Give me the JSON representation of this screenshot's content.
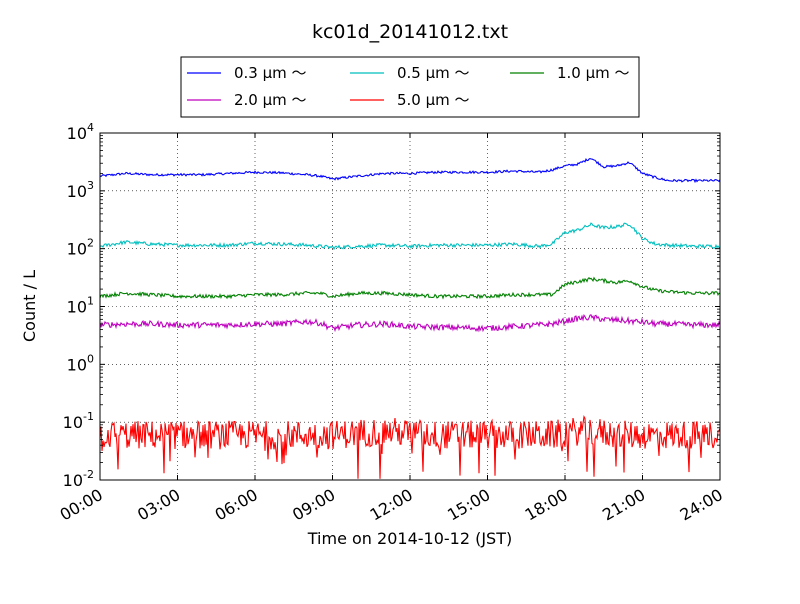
{
  "chart_data": {
    "type": "line",
    "title": "kc01d_20141012.txt",
    "xlabel": "Time on 2014-10-12 (JST)",
    "ylabel": "Count / L",
    "yscale": "log",
    "ylim": [
      0.01,
      10000
    ],
    "xlim": [
      "00:00",
      "24:00"
    ],
    "grid": true,
    "legend_position": "top-center",
    "x_ticks": [
      "00:00",
      "03:00",
      "06:00",
      "09:00",
      "12:00",
      "15:00",
      "18:00",
      "21:00",
      "24:00"
    ],
    "y_ticks": [
      {
        "base": "10",
        "exp": "-2"
      },
      {
        "base": "10",
        "exp": "-1"
      },
      {
        "base": "10",
        "exp": "0"
      },
      {
        "base": "10",
        "exp": "1"
      },
      {
        "base": "10",
        "exp": "2"
      },
      {
        "base": "10",
        "exp": "3"
      },
      {
        "base": "10",
        "exp": "4"
      }
    ],
    "x_hours": [
      0,
      1,
      2,
      3,
      4,
      5,
      6,
      7,
      8,
      8.5,
      9,
      10,
      11,
      12,
      13,
      14,
      15,
      16,
      17,
      17.5,
      18,
      18.5,
      19,
      19.5,
      20,
      20.5,
      21,
      21.5,
      22,
      23,
      24
    ],
    "series": [
      {
        "name": "0.3 μm ～",
        "color": "#0000ff",
        "noise": 0.02,
        "values": [
          1800,
          2000,
          1900,
          1900,
          1900,
          2000,
          2100,
          2050,
          1900,
          1800,
          1600,
          1800,
          2000,
          2000,
          2100,
          2100,
          2100,
          2200,
          2100,
          2300,
          2700,
          2900,
          3700,
          2600,
          2700,
          3100,
          2000,
          1700,
          1500,
          1500,
          1500
        ]
      },
      {
        "name": "0.5 μm ～",
        "color": "#00bfbf",
        "noise": 0.03,
        "values": [
          110,
          130,
          120,
          115,
          115,
          115,
          125,
          120,
          115,
          110,
          105,
          110,
          115,
          110,
          115,
          115,
          115,
          120,
          110,
          120,
          190,
          210,
          260,
          230,
          240,
          270,
          150,
          120,
          115,
          110,
          110
        ]
      },
      {
        "name": "1.0 μm ～",
        "color": "#008000",
        "noise": 0.03,
        "values": [
          15,
          17,
          16,
          15,
          15,
          15,
          16,
          16,
          17,
          17,
          15,
          17,
          17,
          16,
          15,
          15,
          15,
          16,
          16,
          16,
          24,
          27,
          30,
          28,
          26,
          28,
          22,
          19,
          18,
          17,
          17
        ]
      },
      {
        "name": "2.0 μm ～",
        "color": "#bf00bf",
        "noise": 0.05,
        "values": [
          4.8,
          5,
          5,
          4.8,
          4.8,
          4.8,
          5,
          5,
          5.5,
          5.2,
          4.2,
          4.8,
          5,
          4.5,
          4.4,
          4.3,
          4.2,
          4.5,
          4.8,
          5,
          5.6,
          6.2,
          6.5,
          6,
          5.8,
          5.6,
          5.4,
          5,
          5,
          4.8,
          4.8
        ]
      },
      {
        "name": "5.0 μm ～",
        "color": "#ff0000",
        "noise": 0.25,
        "values": [
          0.06,
          0.06,
          0.06,
          0.06,
          0.06,
          0.06,
          0.06,
          0.06,
          0.06,
          0.06,
          0.06,
          0.065,
          0.07,
          0.065,
          0.06,
          0.06,
          0.06,
          0.06,
          0.06,
          0.06,
          0.065,
          0.07,
          0.07,
          0.065,
          0.06,
          0.06,
          0.06,
          0.06,
          0.06,
          0.06,
          0.06
        ]
      }
    ]
  }
}
